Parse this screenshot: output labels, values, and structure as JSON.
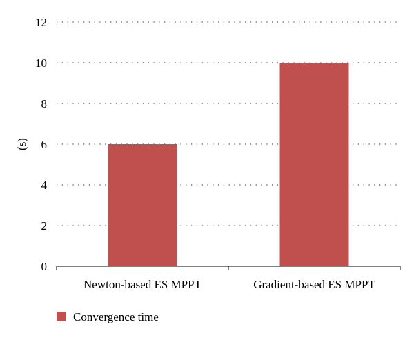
{
  "chart_data": {
    "type": "bar",
    "categories": [
      "Newton-based ES MPPT",
      "Gradient-based ES MPPT"
    ],
    "series": [
      {
        "name": "Convergence time",
        "values": [
          6,
          10
        ],
        "color": "#c0504d"
      }
    ],
    "title": "",
    "xlabel": "",
    "ylabel": "(s)",
    "ylim": [
      0,
      12
    ],
    "yticks": [
      0,
      2,
      4,
      6,
      8,
      10,
      12
    ],
    "grid": true,
    "legend_position": "bottom-left"
  }
}
